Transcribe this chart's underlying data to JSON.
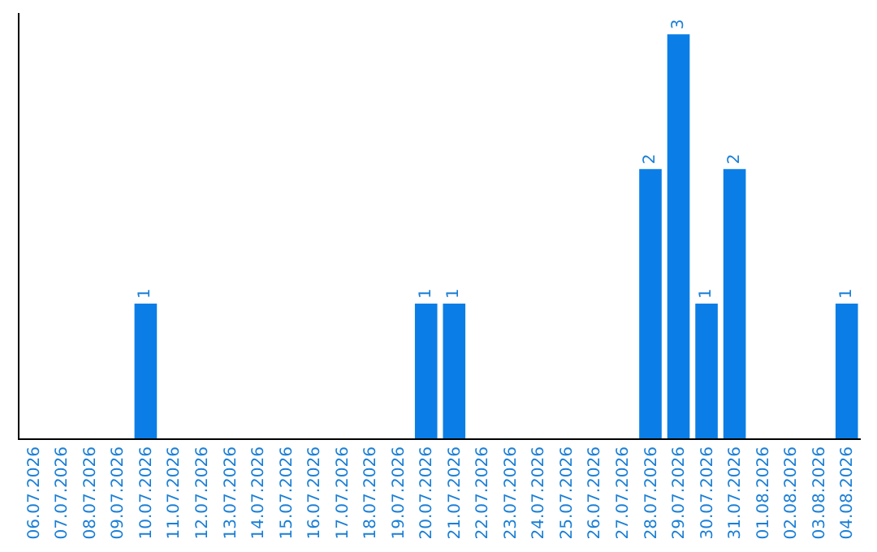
{
  "chart_data": {
    "type": "bar",
    "categories": [
      "06.07.2026",
      "07.07.2026",
      "08.07.2026",
      "09.07.2026",
      "10.07.2026",
      "11.07.2026",
      "12.07.2026",
      "13.07.2026",
      "14.07.2026",
      "15.07.2026",
      "16.07.2026",
      "17.07.2026",
      "18.07.2026",
      "19.07.2026",
      "20.07.2026",
      "21.07.2026",
      "22.07.2026",
      "23.07.2026",
      "24.07.2026",
      "25.07.2026",
      "26.07.2026",
      "27.07.2026",
      "28.07.2026",
      "29.07.2026",
      "30.07.2026",
      "31.07.2026",
      "01.08.2026",
      "02.08.2026",
      "03.08.2026",
      "04.08.2026"
    ],
    "values": [
      0,
      0,
      0,
      0,
      1,
      0,
      0,
      0,
      0,
      0,
      0,
      0,
      0,
      0,
      1,
      1,
      0,
      0,
      0,
      0,
      0,
      0,
      2,
      3,
      1,
      2,
      0,
      0,
      0,
      1
    ],
    "value_labels": [
      null,
      null,
      null,
      null,
      "1",
      null,
      null,
      null,
      null,
      null,
      null,
      null,
      null,
      null,
      "1",
      "1",
      null,
      null,
      null,
      null,
      null,
      null,
      "2",
      "3",
      "1",
      "2",
      null,
      null,
      null,
      "1"
    ],
    "color": "#0a7ee6",
    "tick_labels": "x"
  }
}
